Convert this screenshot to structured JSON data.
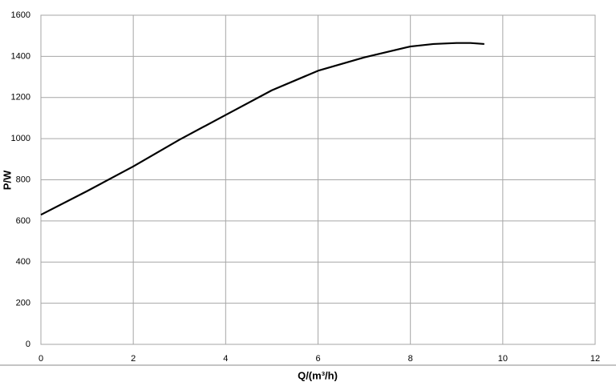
{
  "chart_data": {
    "type": "line",
    "x_label": "Q/(m³/h)",
    "y_label": "P/W",
    "x": [
      0,
      1,
      2,
      3,
      4,
      5,
      6,
      7,
      8,
      8.5,
      9,
      9.3,
      9.6
    ],
    "series": [
      {
        "name": "P",
        "color": "#000000",
        "values": [
          630,
          745,
          865,
          995,
          1115,
          1235,
          1330,
          1395,
          1448,
          1460,
          1465,
          1465,
          1460
        ]
      }
    ],
    "xlim": [
      0,
      12
    ],
    "xticks": [
      0,
      2,
      4,
      6,
      8,
      10,
      12
    ],
    "ylim": [
      0,
      1600
    ],
    "yticks": [
      0,
      200,
      400,
      600,
      800,
      1000,
      1200,
      1400,
      1600
    ],
    "grid": true
  }
}
